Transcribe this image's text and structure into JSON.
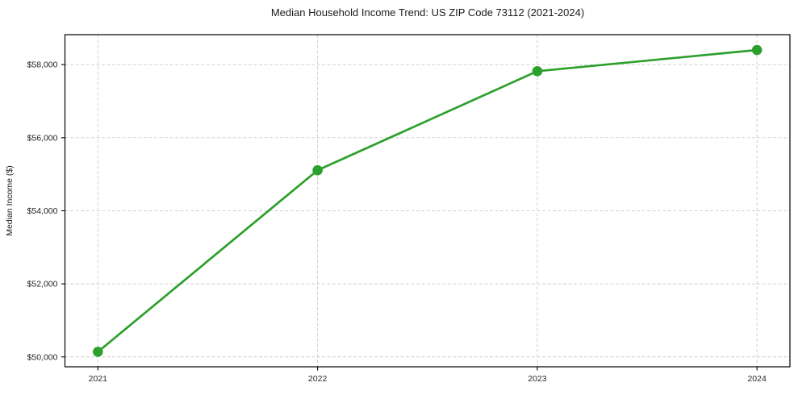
{
  "figure": {
    "background": "#ffffff"
  },
  "chart_data": {
    "type": "line",
    "title": "Median Household Income Trend: US ZIP Code 73112 (2021-2024)",
    "xlabel": "",
    "ylabel": "Median Income ($)",
    "x": [
      2021,
      2022,
      2023,
      2024
    ],
    "x_tick_labels": [
      "2021",
      "2022",
      "2023",
      "2024"
    ],
    "series": [
      {
        "name": "Median Household Income",
        "values": [
          50140,
          55110,
          57820,
          58400
        ]
      }
    ],
    "y_ticks": [
      50000,
      52000,
      54000,
      56000,
      58000
    ],
    "y_tick_labels": [
      "$50,000",
      "$52,000",
      "$54,000",
      "$56,000",
      "$58,000"
    ],
    "xlim": [
      2020.85,
      2024.15
    ],
    "ylim": [
      49730,
      58820
    ],
    "grid": true,
    "grid_style": "dashed",
    "grid_color": "#cccccc",
    "line_color": "#2ca02c",
    "marker": "circle",
    "frame_color": "#000000",
    "legend_position": "none"
  }
}
